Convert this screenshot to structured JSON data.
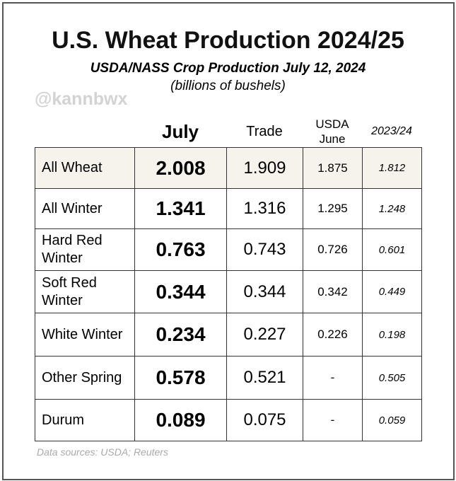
{
  "header": {
    "title": "U.S. Wheat Production 2024/25",
    "subtitle": "USDA/NASS Crop Production July 12, 2024",
    "unit": "(billions of bushels)",
    "handle": "@kannbwx"
  },
  "table": {
    "columns": [
      "July",
      "Trade",
      "USDA June",
      "2023/24"
    ],
    "rows": [
      [
        "All Wheat",
        "2.008",
        "1.909",
        "1.875",
        "1.812"
      ],
      [
        "All Winter",
        "1.341",
        "1.316",
        "1.295",
        "1.248"
      ],
      [
        "Hard Red Winter",
        "0.763",
        "0.743",
        "0.726",
        "0.601"
      ],
      [
        "Soft Red Winter",
        "0.344",
        "0.344",
        "0.342",
        "0.449"
      ],
      [
        "White Winter",
        "0.234",
        "0.227",
        "0.226",
        "0.198"
      ],
      [
        "Other Spring",
        "0.578",
        "0.521",
        "-",
        "0.505"
      ],
      [
        "Durum",
        "0.089",
        "0.075",
        "-",
        "0.059"
      ]
    ]
  },
  "footer": {
    "source": "Data sources: USDA; Reuters"
  }
}
